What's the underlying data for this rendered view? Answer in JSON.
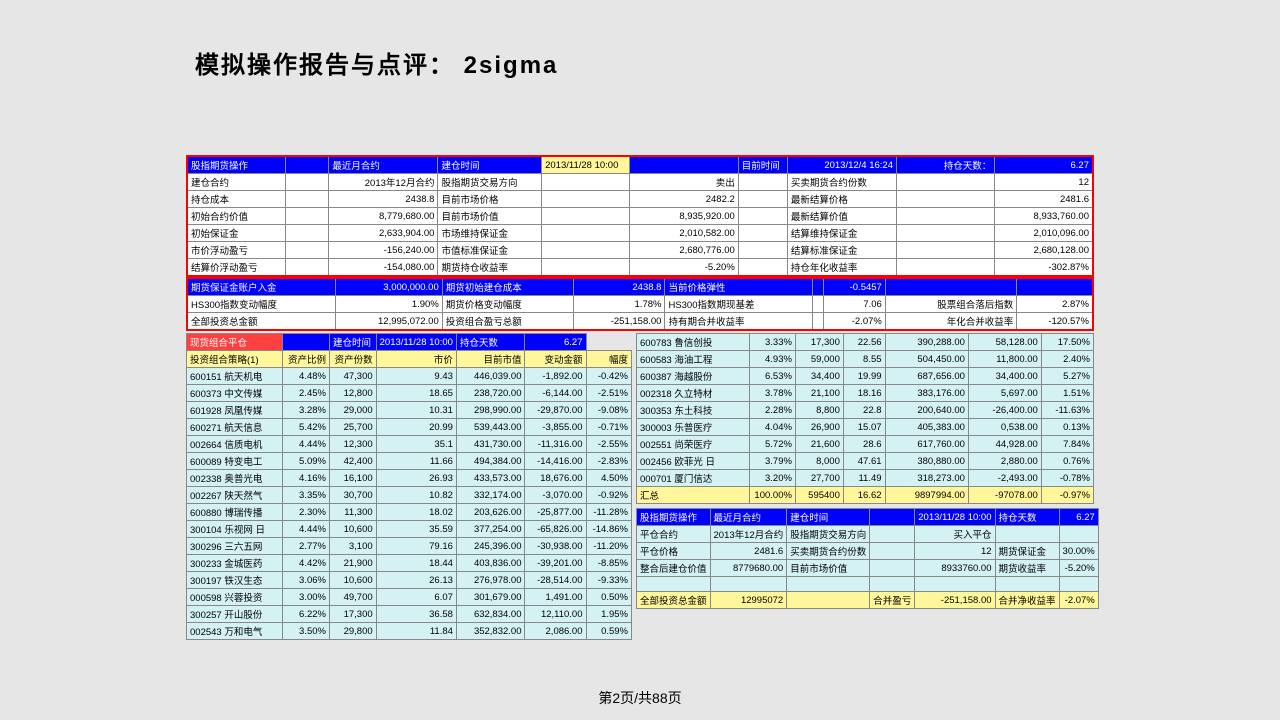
{
  "title": "模拟操作报告与点评： 2sigma",
  "footer": "第2页/共88页",
  "t1": {
    "h": [
      "股指期货操作",
      "",
      "最近月合约",
      "建仓时间",
      "2013/11/28 10:00",
      "",
      "目前时间",
      "2013/12/4 16:24",
      "持仓天数：",
      "6.27"
    ],
    "r": [
      [
        "建仓合约",
        "",
        "2013年12月合约",
        "股指期货交易方向",
        "",
        "卖出",
        "",
        "买卖期货合约份数",
        "",
        "12"
      ],
      [
        "持仓成本",
        "",
        "2438.8",
        "目前市场价格",
        "",
        "2482.2",
        "",
        "最新结算价格",
        "",
        "2481.6"
      ],
      [
        "初始合约价值",
        "",
        "8,779,680.00",
        "目前市场价值",
        "",
        "8,935,920.00",
        "",
        "最新结算价值",
        "",
        "8,933,760.00"
      ],
      [
        "初始保证金",
        "",
        "2,633,904.00",
        "市场维持保证金",
        "",
        "2,010,582.00",
        "",
        "结算维持保证金",
        "",
        "2,010,096.00"
      ],
      [
        "市价浮动盈亏",
        "",
        "-156,240.00",
        "市值标准保证金",
        "",
        "2,680,776.00",
        "",
        "结算标准保证金",
        "",
        "2,680,128.00"
      ],
      [
        "结算价浮动盈亏",
        "",
        "-154,080.00",
        "期货持仓收益率",
        "",
        "-5.20%",
        "",
        "持仓年化收益率",
        "",
        "-302.87%"
      ]
    ]
  },
  "t2": {
    "h": [
      "期货保证金账户入金",
      "3,000,000.00",
      "期货初始建仓成本",
      "2438.8",
      "当前价格弹性",
      "",
      "-0.5457",
      "",
      ""
    ],
    "r": [
      [
        "HS300指数变动幅度",
        "1.90%",
        "期货价格变动幅度",
        "1.78%",
        "HS300指数期现基差",
        "",
        "7.06",
        "股票组合落后指数",
        "2.87%"
      ],
      [
        "全部投资总金额",
        "12,995,072.00",
        "投资组合盈亏总额",
        "-251,158.00",
        "持有期合并收益率",
        "",
        "-2.07%",
        "年化合并收益率",
        "-120.57%"
      ]
    ]
  },
  "lh": [
    "现货组合平仓",
    "",
    "建仓时间",
    "2013/11/28 10:00",
    "持仓天数",
    "6.27"
  ],
  "lc": [
    "投资组合策略(1)",
    "资产比例",
    "资产份数",
    "市价",
    "目前市值",
    "变动金额",
    "幅度"
  ],
  "lr": [
    [
      "600151 航天机电",
      "4.48%",
      "47,300",
      "9.43",
      "446,039.00",
      "-1,892.00",
      "-0.42%"
    ],
    [
      "600373 中文传媒",
      "2.45%",
      "12,800",
      "18.65",
      "238,720.00",
      "-6,144.00",
      "-2.51%"
    ],
    [
      "601928 凤凰传媒",
      "3.28%",
      "29,000",
      "10.31",
      "298,990.00",
      "-29,870.00",
      "-9.08%"
    ],
    [
      "600271 航天信息",
      "5.42%",
      "25,700",
      "20.99",
      "539,443.00",
      "-3,855.00",
      "-0.71%"
    ],
    [
      "002664 信质电机",
      "4.44%",
      "12,300",
      "35.1",
      "431,730.00",
      "-11,316.00",
      "-2.55%"
    ],
    [
      "600089 特变电工",
      "5.09%",
      "42,400",
      "11.66",
      "494,384.00",
      "-14,416.00",
      "-2.83%"
    ],
    [
      "002338 奥普光电",
      "4.16%",
      "16,100",
      "26.93",
      "433,573.00",
      "18,676.00",
      "4.50%"
    ],
    [
      "002267 陕天然气",
      "3.35%",
      "30,700",
      "10.82",
      "332,174.00",
      "-3,070.00",
      "-0.92%"
    ],
    [
      "600880 博瑞传播",
      "2.30%",
      "11,300",
      "18.02",
      "203,626.00",
      "-25,877.00",
      "-11.28%"
    ],
    [
      "300104 乐视网 日",
      "4.44%",
      "10,600",
      "35.59",
      "377,254.00",
      "-65,826.00",
      "-14.86%"
    ],
    [
      "300296 三六五网",
      "2.77%",
      "3,100",
      "79.16",
      "245,396.00",
      "-30,938.00",
      "-11.20%"
    ],
    [
      "300233 金城医药",
      "4.42%",
      "21,900",
      "18.44",
      "403,836.00",
      "-39,201.00",
      "-8.85%"
    ],
    [
      "300197 铁汉生态",
      "3.06%",
      "10,600",
      "26.13",
      "276,978.00",
      "-28,514.00",
      "-9.33%"
    ],
    [
      "000598 兴蓉投资",
      "3.00%",
      "49,700",
      "6.07",
      "301,679.00",
      "1,491.00",
      "0.50%"
    ],
    [
      "300257 开山股份",
      "6.22%",
      "17,300",
      "36.58",
      "632,834.00",
      "12,110.00",
      "1.95%"
    ],
    [
      "002543 万和电气",
      "3.50%",
      "29,800",
      "11.84",
      "352,832.00",
      "2,086.00",
      "0.59%"
    ]
  ],
  "rr": [
    [
      "600783 鲁信创投",
      "3.33%",
      "17,300",
      "22.56",
      "390,288.00",
      "58,128.00",
      "17.50%"
    ],
    [
      "600583 海油工程",
      "4.93%",
      "59,000",
      "8.55",
      "504,450.00",
      "11,800.00",
      "2.40%"
    ],
    [
      "600387 海越股份",
      "6.53%",
      "34,400",
      "19.99",
      "687,656.00",
      "34,400.00",
      "5.27%"
    ],
    [
      "002318 久立特材",
      "3.78%",
      "21,100",
      "18.16",
      "383,176.00",
      "5,697.00",
      "1.51%"
    ],
    [
      "300353 东土科技",
      "2.28%",
      "8,800",
      "22.8",
      "200,640.00",
      "-26,400.00",
      "-11.63%"
    ],
    [
      "300003 乐普医疗",
      "4.04%",
      "26,900",
      "15.07",
      "405,383.00",
      "0,538.00",
      "0.13%"
    ],
    [
      "002551 尚荣医疗",
      "5.72%",
      "21,600",
      "28.6",
      "617,760.00",
      "44,928.00",
      "7.84%"
    ],
    [
      "002456 欧菲光 日",
      "3.79%",
      "8,000",
      "47.61",
      "380,880.00",
      "2,880.00",
      "0.76%"
    ],
    [
      "000701 厦门信达",
      "3.20%",
      "27,700",
      "11.49",
      "318,273.00",
      "-2,493.00",
      "-0.78%"
    ]
  ],
  "rsum": [
    "汇总",
    "100.00%",
    "595400",
    "16.62",
    "9897994.00",
    "-97078.00",
    "-0.97%"
  ],
  "bh": [
    "股指期货操作",
    "最近月合约",
    "建仓时间",
    "",
    "2013/11/28 10:00",
    "持仓天数",
    "6.27"
  ],
  "br": [
    [
      "平仓合约",
      "2013年12月合约",
      "股指期货交易方向",
      "",
      "买入平仓",
      "",
      ""
    ],
    [
      "平仓价格",
      "2481.6",
      "买卖期货合约份数",
      "",
      "12",
      "期货保证金",
      "30.00%"
    ],
    [
      "整合后建仓价值",
      "8779680.00",
      "目前市场价值",
      "",
      "8933760.00",
      "期货收益率",
      "-5.20%"
    ],
    [
      "",
      "",
      "",
      "",
      "",
      "",
      ""
    ]
  ],
  "bsum": [
    "全部投资总金额",
    "12995072",
    "",
    "合并盈亏",
    "-251,158.00",
    "合并净收益率",
    "-2.07%"
  ]
}
